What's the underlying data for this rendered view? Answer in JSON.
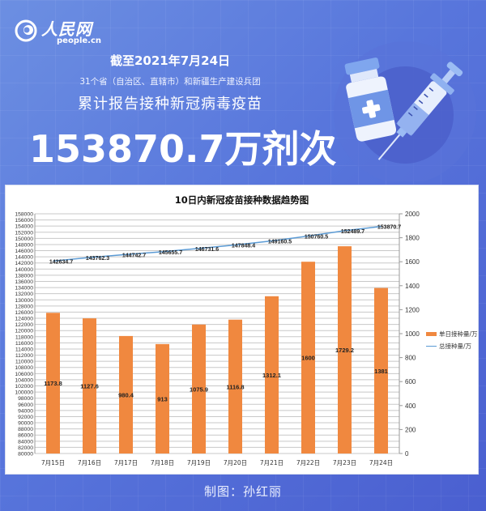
{
  "header": {
    "logo_cn": "人民网",
    "logo_en": "people.cn",
    "date_line": "截至2021年7月24日",
    "sub_line": "31个省（自治区、直辖市）和新疆生产建设兵团",
    "main_line": "累计报告接种新冠病毒疫苗",
    "big_number": "153870.7万剂次"
  },
  "illustration": {
    "icons": [
      "vaccine-vial-icon",
      "syringe-icon"
    ]
  },
  "colors": {
    "background_top": "#6c8fe2",
    "background_bottom": "#4a5fd0",
    "bar": "#f0883f",
    "line": "#5b9bd5",
    "grid": "#c8c8c8"
  },
  "chart_data": {
    "type": "bar",
    "title": "10日内新冠疫苗接种数据趋势图",
    "categories": [
      "7月15日",
      "7月16日",
      "7月17日",
      "7月18日",
      "7月19日",
      "7月20日",
      "7月21日",
      "7月22日",
      "7月23日",
      "7月24日"
    ],
    "series": [
      {
        "name": "单日接种量/万",
        "type": "bar",
        "axis": "right",
        "values": [
          1173.8,
          1127.6,
          980.4,
          913,
          1075.9,
          1116.8,
          1312.1,
          1600,
          1729.2,
          1381
        ],
        "labels": [
          "1173.8",
          "1127.6",
          "980.4",
          "913",
          "1075.9",
          "1116.8",
          "1312.1",
          "1600",
          "1729.2",
          "1381"
        ]
      },
      {
        "name": "总接种量/万",
        "type": "line",
        "axis": "left",
        "values": [
          142634.7,
          143762.3,
          144742.7,
          145655.7,
          146731.6,
          147848.4,
          149160.5,
          150760.5,
          152489.7,
          153870.7
        ],
        "labels": [
          "142634.7",
          "143762.3",
          "144742.7",
          "145655.7",
          "146731.6",
          "147848.4",
          "149160.5",
          "150760.5",
          "152489.7",
          "153870.7"
        ]
      }
    ],
    "left_axis": {
      "min": 80000,
      "max": 158000,
      "step": 2000
    },
    "right_axis": {
      "min": 0,
      "max": 2000,
      "step": 200,
      "ticks": [
        "0",
        "200",
        "400",
        "600",
        "800",
        "1000",
        "1200",
        "1400",
        "1600",
        "1800",
        "2000"
      ]
    },
    "xlabel": "",
    "ylabel": "",
    "grid": true,
    "legend_position": "right"
  },
  "footer": {
    "credit": "制图：孙红丽"
  }
}
